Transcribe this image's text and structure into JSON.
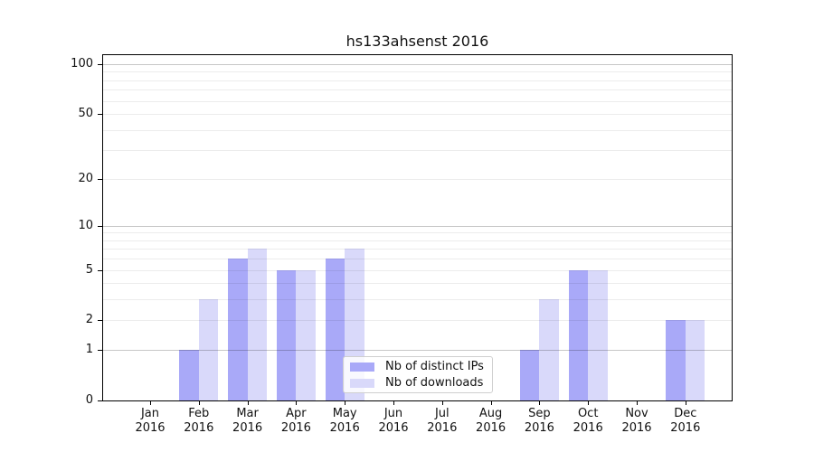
{
  "title": "hs133ahsenst 2016",
  "chart_data": {
    "type": "bar",
    "title": "hs133ahsenst 2016",
    "categories": [
      "Jan 2016",
      "Feb 2016",
      "Mar 2016",
      "Apr 2016",
      "May 2016",
      "Jun 2016",
      "Jul 2016",
      "Aug 2016",
      "Sep 2016",
      "Oct 2016",
      "Nov 2016",
      "Dec 2016"
    ],
    "x_tick_months": [
      "Jan",
      "Feb",
      "Mar",
      "Apr",
      "May",
      "Jun",
      "Jul",
      "Aug",
      "Sep",
      "Oct",
      "Nov",
      "Dec"
    ],
    "x_tick_year": "2016",
    "series": [
      {
        "name": "Nb of distinct IPs",
        "color": "#a9a9f8",
        "values": [
          0,
          1,
          6,
          5,
          6,
          0,
          0,
          0,
          1,
          5,
          0,
          2
        ]
      },
      {
        "name": "Nb of downloads",
        "color": "#d9d9fa",
        "values": [
          0,
          3,
          7,
          5,
          7,
          0,
          0,
          0,
          3,
          5,
          0,
          2
        ]
      }
    ],
    "yscale": "log1p",
    "ylim": [
      0,
      100
    ],
    "y_ticks": [
      0,
      1,
      2,
      5,
      10,
      20,
      50,
      100
    ],
    "y_major_gridlines": [
      1,
      10,
      100
    ],
    "y_minor_gridlines": [
      2,
      3,
      4,
      5,
      6,
      7,
      8,
      9,
      20,
      30,
      40,
      50,
      60,
      70,
      80,
      90
    ],
    "grid": "horizontal",
    "legend": {
      "position": "lower center",
      "entries": [
        "Nb of distinct IPs",
        "Nb of downloads"
      ]
    },
    "colors": {
      "bar_distinct_ips": "#a9a9f8",
      "bar_downloads": "#d9d9fa",
      "major_grid": "#c8c8c8",
      "minor_grid": "#eaeaea",
      "spine": "#000000",
      "text": "#111111"
    }
  }
}
